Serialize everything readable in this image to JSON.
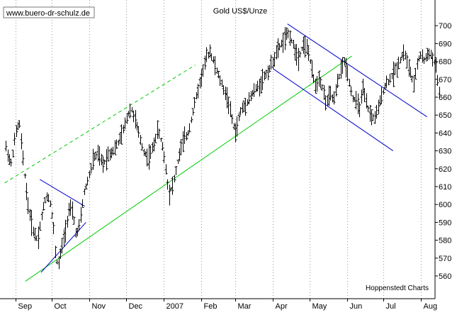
{
  "watermark": "www.buero-dr-schulz.de",
  "chart_data": {
    "type": "ohlc",
    "title": "Gold US$/Unze",
    "source": "Hoppenstedt Charts",
    "ylim": [
      550,
      710
    ],
    "ytick_labels": [
      "560",
      "570",
      "580",
      "590",
      "600",
      "610",
      "620",
      "630",
      "640",
      "650",
      "660",
      "670",
      "680",
      "690",
      "700"
    ],
    "yticks": [
      560,
      570,
      580,
      590,
      600,
      610,
      620,
      630,
      640,
      650,
      660,
      670,
      680,
      690,
      700
    ],
    "xlim": [
      0,
      365
    ],
    "month_ticks": [
      {
        "label": "Sep",
        "t": 0
      },
      {
        "label": "Oct",
        "t": 30
      },
      {
        "label": "Nov",
        "t": 61
      },
      {
        "label": "Dec",
        "t": 91
      },
      {
        "label": "2007",
        "t": 122
      },
      {
        "label": "Feb",
        "t": 153
      },
      {
        "label": "Mar",
        "t": 181
      },
      {
        "label": "Apr",
        "t": 212
      },
      {
        "label": "May",
        "t": 242
      },
      {
        "label": "Jun",
        "t": 273
      },
      {
        "label": "Jul",
        "t": 303
      },
      {
        "label": "Aug",
        "t": 334
      }
    ],
    "grid": "vertical dotted lines at month starts",
    "price_anchors": [
      {
        "t": -8,
        "v": 632
      },
      {
        "t": -4,
        "v": 622
      },
      {
        "t": 0,
        "v": 640
      },
      {
        "t": 3,
        "v": 646
      },
      {
        "t": 6,
        "v": 625
      },
      {
        "t": 10,
        "v": 600
      },
      {
        "t": 14,
        "v": 586
      },
      {
        "t": 18,
        "v": 580
      },
      {
        "t": 22,
        "v": 596
      },
      {
        "t": 25,
        "v": 605
      },
      {
        "t": 28,
        "v": 603
      },
      {
        "t": 31,
        "v": 588
      },
      {
        "t": 33,
        "v": 570
      },
      {
        "t": 35,
        "v": 566
      },
      {
        "t": 38,
        "v": 576
      },
      {
        "t": 41,
        "v": 586
      },
      {
        "t": 44,
        "v": 598
      },
      {
        "t": 47,
        "v": 595
      },
      {
        "t": 50,
        "v": 582
      },
      {
        "t": 53,
        "v": 590
      },
      {
        "t": 56,
        "v": 606
      },
      {
        "t": 60,
        "v": 615
      },
      {
        "t": 64,
        "v": 626
      },
      {
        "t": 68,
        "v": 628
      },
      {
        "t": 72,
        "v": 622
      },
      {
        "t": 76,
        "v": 628
      },
      {
        "t": 80,
        "v": 630
      },
      {
        "t": 84,
        "v": 634
      },
      {
        "t": 88,
        "v": 640
      },
      {
        "t": 92,
        "v": 650
      },
      {
        "t": 95,
        "v": 654
      },
      {
        "t": 98,
        "v": 648
      },
      {
        "t": 101,
        "v": 640
      },
      {
        "t": 105,
        "v": 630
      },
      {
        "t": 109,
        "v": 626
      },
      {
        "t": 113,
        "v": 632
      },
      {
        "t": 117,
        "v": 642
      },
      {
        "t": 121,
        "v": 632
      },
      {
        "t": 124,
        "v": 618
      },
      {
        "t": 126,
        "v": 606
      },
      {
        "t": 130,
        "v": 612
      },
      {
        "t": 134,
        "v": 626
      },
      {
        "t": 138,
        "v": 636
      },
      {
        "t": 142,
        "v": 640
      },
      {
        "t": 146,
        "v": 652
      },
      {
        "t": 150,
        "v": 664
      },
      {
        "t": 154,
        "v": 674
      },
      {
        "t": 157,
        "v": 682
      },
      {
        "t": 160,
        "v": 686
      },
      {
        "t": 163,
        "v": 680
      },
      {
        "t": 167,
        "v": 672
      },
      {
        "t": 171,
        "v": 665
      },
      {
        "t": 175,
        "v": 658
      },
      {
        "t": 178,
        "v": 648
      },
      {
        "t": 181,
        "v": 640
      },
      {
        "t": 185,
        "v": 652
      },
      {
        "t": 189,
        "v": 656
      },
      {
        "t": 193,
        "v": 660
      },
      {
        "t": 197,
        "v": 664
      },
      {
        "t": 201,
        "v": 667
      },
      {
        "t": 205,
        "v": 672
      },
      {
        "t": 209,
        "v": 676
      },
      {
        "t": 213,
        "v": 682
      },
      {
        "t": 217,
        "v": 688
      },
      {
        "t": 221,
        "v": 692
      },
      {
        "t": 225,
        "v": 696
      },
      {
        "t": 229,
        "v": 688
      },
      {
        "t": 233,
        "v": 682
      },
      {
        "t": 237,
        "v": 690
      },
      {
        "t": 241,
        "v": 686
      },
      {
        "t": 244,
        "v": 674
      },
      {
        "t": 247,
        "v": 666
      },
      {
        "t": 250,
        "v": 672
      },
      {
        "t": 253,
        "v": 664
      },
      {
        "t": 256,
        "v": 656
      },
      {
        "t": 259,
        "v": 662
      },
      {
        "t": 262,
        "v": 658
      },
      {
        "t": 265,
        "v": 668
      },
      {
        "t": 268,
        "v": 676
      },
      {
        "t": 271,
        "v": 680
      },
      {
        "t": 274,
        "v": 672
      },
      {
        "t": 277,
        "v": 660
      },
      {
        "t": 280,
        "v": 658
      },
      {
        "t": 283,
        "v": 654
      },
      {
        "t": 286,
        "v": 664
      },
      {
        "t": 289,
        "v": 656
      },
      {
        "t": 292,
        "v": 650
      },
      {
        "t": 295,
        "v": 648
      },
      {
        "t": 298,
        "v": 652
      },
      {
        "t": 301,
        "v": 660
      },
      {
        "t": 304,
        "v": 666
      },
      {
        "t": 308,
        "v": 670
      },
      {
        "t": 312,
        "v": 674
      },
      {
        "t": 316,
        "v": 680
      },
      {
        "t": 320,
        "v": 686
      },
      {
        "t": 323,
        "v": 678
      },
      {
        "t": 326,
        "v": 672
      },
      {
        "t": 328,
        "v": 666
      },
      {
        "t": 331,
        "v": 680
      },
      {
        "t": 334,
        "v": 684
      },
      {
        "t": 337,
        "v": 680
      },
      {
        "t": 340,
        "v": 686
      },
      {
        "t": 343,
        "v": 682
      },
      {
        "t": 346,
        "v": 678
      },
      {
        "t": 349,
        "v": 662
      }
    ],
    "trendlines": [
      {
        "name": "uptrend-support",
        "color": "#00cc00",
        "style": "solid",
        "from": {
          "t": 8,
          "v": 557
        },
        "to": {
          "t": 277,
          "v": 683
        }
      },
      {
        "name": "uptrend-upper-channel",
        "color": "#00cc00",
        "style": "dashed",
        "from": {
          "t": -9,
          "v": 612
        },
        "to": {
          "t": 148,
          "v": 678
        }
      },
      {
        "name": "uptrend-upper-channel-start",
        "color": "#00cc00",
        "style": "dashed",
        "from": {
          "t": -22,
          "v": 641
        },
        "to": {
          "t": -14,
          "v": 648
        }
      },
      {
        "name": "triangle-top",
        "color": "#0000cc",
        "style": "solid",
        "from": {
          "t": 20,
          "v": 614
        },
        "to": {
          "t": 57,
          "v": 599
        }
      },
      {
        "name": "triangle-bottom",
        "color": "#0000cc",
        "style": "solid",
        "from": {
          "t": 21,
          "v": 562
        },
        "to": {
          "t": 58,
          "v": 590
        }
      },
      {
        "name": "downtrend-channel-top",
        "color": "#0000cc",
        "style": "solid",
        "from": {
          "t": 224,
          "v": 701
        },
        "to": {
          "t": 339,
          "v": 649
        }
      },
      {
        "name": "downtrend-channel-bottom",
        "color": "#0000cc",
        "style": "solid",
        "from": {
          "t": 212,
          "v": 676
        },
        "to": {
          "t": 311,
          "v": 630
        }
      }
    ]
  }
}
